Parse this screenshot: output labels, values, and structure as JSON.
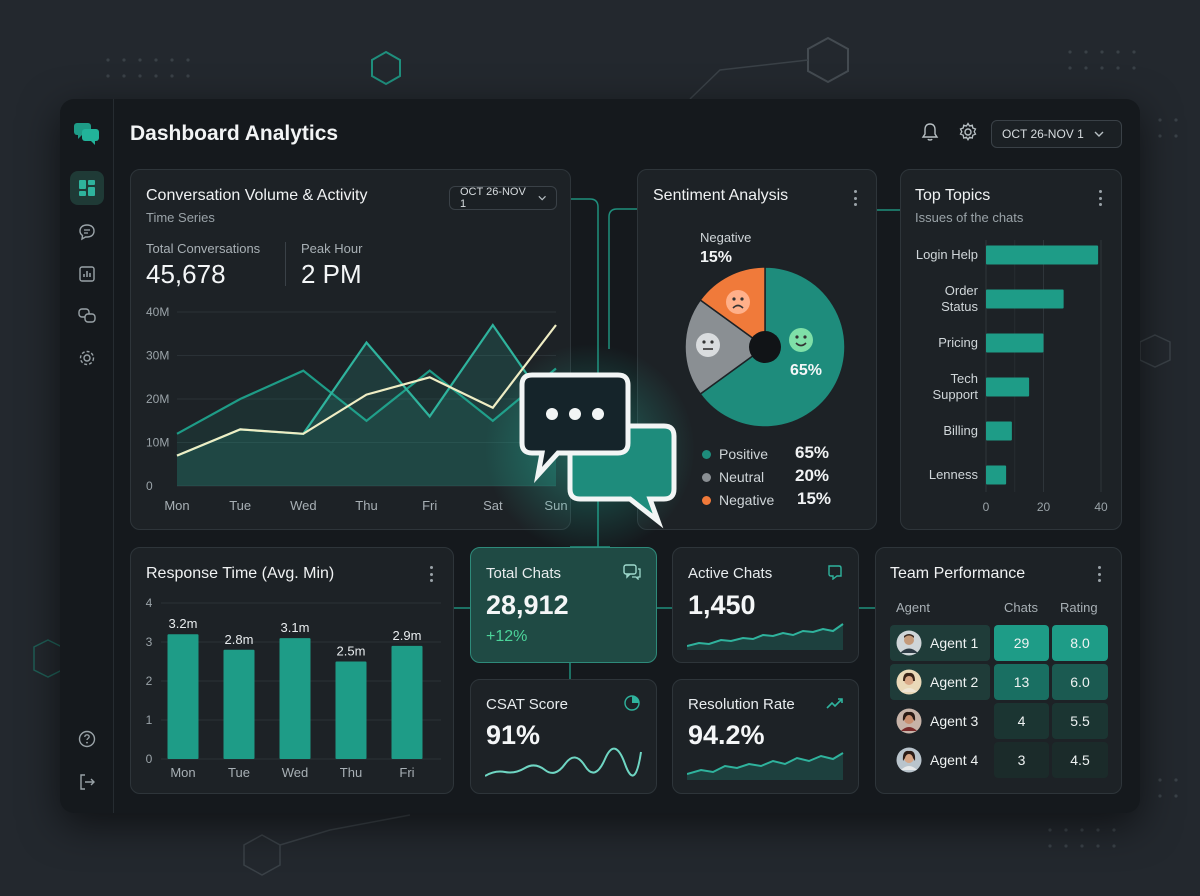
{
  "header": {
    "title": "Dashboard Analytics",
    "date_range": "OCT 26-NOV 1"
  },
  "icons": {
    "logo": "chat-bubbles-icon",
    "dashboard": "grid-icon",
    "chat": "chat-icon",
    "reports": "bar-chart-icon",
    "messages": "chat-bubbles-icon",
    "settings": "gear-icon",
    "help": "help-icon",
    "logout": "logout-icon",
    "bell": "bell-icon"
  },
  "colors": {
    "accent": "#1e9c87",
    "positive": "#1e8c7c",
    "neutral": "#8a8f93",
    "negative": "#f07a3a",
    "background": "#15191d"
  },
  "volume": {
    "title": "Conversation Volume & Activity",
    "subtitle": "Time Series",
    "date_range": "OCT 26-NOV 1",
    "total_label": "Total Conversations",
    "total_value": "45,678",
    "peak_label": "Peak Hour",
    "peak_value": "2 PM"
  },
  "sentiment": {
    "title": "Sentiment Analysis",
    "callout_label": "Negative",
    "callout_value": "15%",
    "slice_label": "65%",
    "legend": [
      {
        "label": "Positive",
        "value": "65%"
      },
      {
        "label": "Neutral",
        "value": "20%"
      },
      {
        "label": "Negative",
        "value": "15%"
      }
    ]
  },
  "topics": {
    "title": "Top Topics",
    "subtitle": "Issues of the chats"
  },
  "response": {
    "title": "Response Time (Avg. Min)"
  },
  "kpis": {
    "total_chats": {
      "label": "Total Chats",
      "value": "28,912",
      "change": "+12%"
    },
    "active_chats": {
      "label": "Active Chats",
      "value": "1,450"
    },
    "csat": {
      "label": "CSAT Score",
      "value": "91%"
    },
    "resolution": {
      "label": "Resolution Rate",
      "value": "94.2%"
    }
  },
  "team": {
    "title": "Team Performance",
    "columns": [
      "Agent",
      "Chats",
      "Rating"
    ],
    "rows": [
      {
        "agent": "Agent 1",
        "chats": "29",
        "rating": "8.0"
      },
      {
        "agent": "Agent 2",
        "chats": "13",
        "rating": "6.0"
      },
      {
        "agent": "Agent 3",
        "chats": "4",
        "rating": "5.5"
      },
      {
        "agent": "Agent 4",
        "chats": "3",
        "rating": "4.5"
      }
    ]
  },
  "chart_data": [
    {
      "type": "line",
      "categories": [
        "Mon",
        "Tue",
        "Wed",
        "Thu",
        "Fri",
        "Sat",
        "Sun"
      ],
      "yticks": [
        "0",
        "10M",
        "20M",
        "30M",
        "40M"
      ],
      "ylim": [
        0,
        40
      ],
      "series": [
        {
          "values": [
            12,
            20,
            26.5,
            15,
            26.5,
            15,
            27
          ]
        },
        {
          "values": [
            7,
            13,
            12,
            33,
            16,
            37,
            16
          ]
        },
        {
          "values": [
            7,
            13,
            12,
            21,
            25,
            18,
            37
          ]
        }
      ]
    },
    {
      "type": "pie",
      "slices": [
        {
          "label": "Positive",
          "value": 65
        },
        {
          "label": "Neutral",
          "value": 20
        },
        {
          "label": "Negative",
          "value": 15
        }
      ]
    },
    {
      "type": "bar",
      "orientation": "horizontal",
      "categories": [
        "Login Help",
        "Order Status",
        "Pricing",
        "Tech Support",
        "Billing",
        "Lenness"
      ],
      "values": [
        39,
        27,
        20,
        15,
        9,
        7
      ],
      "xticks": [
        "0",
        "20",
        "40"
      ],
      "xlim": [
        0,
        40
      ]
    },
    {
      "type": "bar",
      "categories": [
        "Mon",
        "Tue",
        "Wed",
        "Thu",
        "Fri"
      ],
      "values": [
        3.2,
        2.8,
        3.1,
        2.5,
        2.9
      ],
      "labels": [
        "3.2m",
        "2.8m",
        "3.1m",
        "2.5m",
        "2.9m"
      ],
      "yticks": [
        "0",
        "1",
        "2",
        "3",
        "4"
      ],
      "ylim": [
        0,
        4
      ]
    }
  ]
}
